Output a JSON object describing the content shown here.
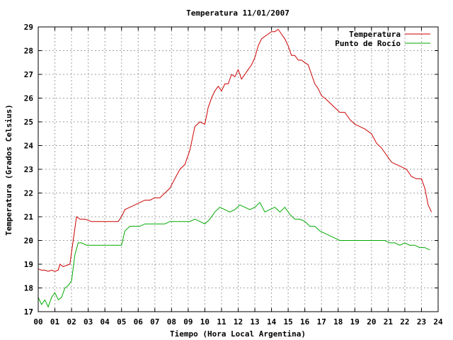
{
  "chart_data": {
    "type": "line",
    "title": "Temperatura 11/01/2007",
    "xlabel": "Tiempo (Hora Local Argentina)",
    "ylabel": "Temperatura (Grados Celsius)",
    "xlim": [
      0,
      24
    ],
    "ylim": [
      17,
      29
    ],
    "x_ticks": [
      "00",
      "01",
      "02",
      "03",
      "04",
      "05",
      "06",
      "07",
      "08",
      "09",
      "10",
      "11",
      "12",
      "13",
      "14",
      "15",
      "16",
      "17",
      "18",
      "19",
      "20",
      "21",
      "22",
      "23",
      "24"
    ],
    "y_ticks": [
      17,
      18,
      19,
      20,
      21,
      22,
      23,
      24,
      25,
      26,
      27,
      28,
      29
    ],
    "grid": true,
    "legend_position": "top-right",
    "x_unit": "hours",
    "series": [
      {
        "name": "Temperatura",
        "color": "#cc0000",
        "x": [
          0.0,
          0.2,
          0.4,
          0.6,
          0.8,
          1.0,
          1.2,
          1.3,
          1.5,
          1.7,
          1.9,
          2.1,
          2.3,
          2.5,
          2.8,
          3.2,
          3.6,
          4.0,
          4.4,
          4.8,
          5.0,
          5.2,
          5.5,
          5.8,
          6.1,
          6.4,
          6.7,
          7.0,
          7.3,
          7.6,
          7.9,
          8.2,
          8.5,
          8.8,
          9.1,
          9.4,
          9.7,
          10.0,
          10.2,
          10.4,
          10.6,
          10.8,
          11.0,
          11.2,
          11.4,
          11.6,
          11.8,
          12.0,
          12.2,
          12.4,
          12.6,
          12.8,
          13.0,
          13.2,
          13.4,
          13.6,
          13.8,
          14.0,
          14.2,
          14.4,
          14.6,
          14.8,
          15.0,
          15.2,
          15.4,
          15.6,
          15.8,
          16.0,
          16.2,
          16.4,
          16.6,
          16.8,
          17.0,
          17.2,
          17.5,
          17.8,
          18.1,
          18.4,
          18.7,
          19.0,
          19.3,
          19.6,
          20.0,
          20.3,
          20.6,
          20.9,
          21.2,
          21.5,
          21.8,
          22.1,
          22.4,
          22.7,
          23.0,
          23.2,
          23.4,
          23.6
        ],
        "y": [
          18.8,
          18.75,
          18.75,
          18.7,
          18.75,
          18.7,
          18.75,
          19.0,
          18.9,
          18.95,
          19.0,
          20.0,
          21.0,
          20.9,
          20.9,
          20.8,
          20.8,
          20.8,
          20.8,
          20.8,
          21.0,
          21.3,
          21.4,
          21.5,
          21.6,
          21.7,
          21.7,
          21.8,
          21.8,
          22.0,
          22.2,
          22.6,
          23.0,
          23.2,
          23.8,
          24.8,
          25.0,
          24.9,
          25.6,
          26.0,
          26.3,
          26.5,
          26.3,
          26.6,
          26.6,
          27.0,
          26.9,
          27.2,
          26.8,
          27.0,
          27.2,
          27.4,
          27.7,
          28.2,
          28.5,
          28.6,
          28.7,
          28.8,
          28.8,
          28.9,
          28.7,
          28.5,
          28.2,
          27.8,
          27.8,
          27.6,
          27.6,
          27.5,
          27.4,
          27.0,
          26.6,
          26.4,
          26.1,
          26.0,
          25.8,
          25.6,
          25.4,
          25.4,
          25.1,
          24.9,
          24.8,
          24.7,
          24.5,
          24.1,
          23.9,
          23.6,
          23.3,
          23.2,
          23.1,
          23.0,
          22.7,
          22.6,
          22.6,
          22.2,
          21.5,
          21.2
        ]
      },
      {
        "name": "Punto de Rocío",
        "color": "#00aa00",
        "x": [
          0.0,
          0.2,
          0.4,
          0.6,
          0.8,
          1.0,
          1.2,
          1.4,
          1.6,
          1.8,
          2.0,
          2.2,
          2.4,
          2.6,
          2.9,
          3.2,
          3.5,
          3.8,
          4.1,
          4.4,
          4.7,
          5.0,
          5.2,
          5.5,
          5.8,
          6.1,
          6.4,
          6.7,
          7.0,
          7.3,
          7.6,
          7.9,
          8.2,
          8.5,
          8.8,
          9.1,
          9.4,
          9.7,
          10.0,
          10.3,
          10.6,
          10.9,
          11.2,
          11.5,
          11.8,
          12.1,
          12.4,
          12.7,
          13.0,
          13.3,
          13.6,
          13.9,
          14.2,
          14.5,
          14.8,
          15.1,
          15.4,
          15.7,
          16.0,
          16.3,
          16.6,
          16.9,
          17.2,
          17.5,
          17.8,
          18.1,
          18.4,
          18.7,
          19.0,
          19.3,
          19.6,
          19.9,
          20.2,
          20.5,
          20.8,
          21.1,
          21.4,
          21.7,
          22.0,
          22.3,
          22.6,
          22.9,
          23.2,
          23.5
        ],
        "y": [
          17.6,
          17.3,
          17.5,
          17.2,
          17.6,
          17.8,
          17.5,
          17.6,
          18.0,
          18.1,
          18.3,
          19.4,
          19.9,
          19.9,
          19.8,
          19.8,
          19.8,
          19.8,
          19.8,
          19.8,
          19.8,
          19.8,
          20.4,
          20.6,
          20.6,
          20.6,
          20.7,
          20.7,
          20.7,
          20.7,
          20.7,
          20.8,
          20.8,
          20.8,
          20.8,
          20.8,
          20.9,
          20.8,
          20.7,
          20.9,
          21.2,
          21.4,
          21.3,
          21.2,
          21.3,
          21.5,
          21.4,
          21.3,
          21.4,
          21.6,
          21.2,
          21.3,
          21.4,
          21.2,
          21.4,
          21.1,
          20.9,
          20.9,
          20.8,
          20.6,
          20.6,
          20.4,
          20.3,
          20.2,
          20.1,
          20.0,
          20.0,
          20.0,
          20.0,
          20.0,
          20.0,
          20.0,
          20.0,
          20.0,
          20.0,
          19.9,
          19.9,
          19.8,
          19.9,
          19.8,
          19.8,
          19.7,
          19.7,
          19.6
        ]
      }
    ]
  }
}
